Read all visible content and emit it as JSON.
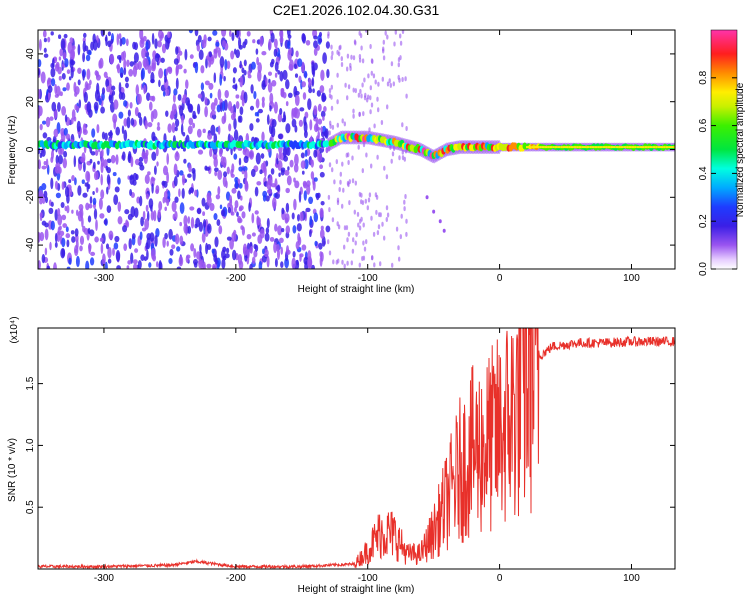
{
  "title": "C2E1.2026.102.04.30.G31",
  "chart_data": [
    {
      "type": "heatmap",
      "xlabel": "Height of straight line (km)",
      "ylabel": "Frequency (Hz)",
      "xlim": [
        -350,
        133
      ],
      "ylim": [
        -50,
        50
      ],
      "xticks": [
        -300,
        -200,
        -100,
        0,
        100
      ],
      "yticks": [
        -40,
        -20,
        0,
        20,
        40
      ],
      "colorbar": {
        "label": "Normalized spectral amplitude",
        "range": [
          0,
          1
        ],
        "ticks": [
          "0.0",
          "0.2",
          "0.4",
          "0.6",
          "0.8"
        ],
        "colormap": "rainbow (white-magenta-purple-blue-cyan-green-yellow-orange-red-magenta)"
      },
      "description_points": {
        "noise_region_x": [
          -350,
          -130
        ],
        "signal_line": {
          "x": [
            -350,
            -130,
            -120,
            -100,
            -80,
            -60,
            -50,
            -40,
            -30,
            -20,
            -10,
            0,
            20,
            60,
            133
          ],
          "freq_hz": [
            2,
            2,
            5,
            5,
            3,
            0,
            -3,
            0,
            1,
            1,
            1,
            1,
            1,
            1,
            1
          ]
        }
      },
      "grid": false
    },
    {
      "type": "line",
      "xlabel": "Height of straight line (km)",
      "ylabel": "SNR (10 * v/v)",
      "y_multiplier": "(x10⁴)",
      "xlim": [
        -350,
        133
      ],
      "ylim": [
        0,
        1.95
      ],
      "xticks": [
        -300,
        -200,
        -100,
        0,
        100
      ],
      "yticks": [
        0.5,
        1.0,
        1.5
      ],
      "ytick_labels": [
        "0.5",
        "1.0",
        "1.5"
      ],
      "series": [
        {
          "color": "#e8302a",
          "x": [
            -350,
            -300,
            -250,
            -230,
            -200,
            -150,
            -110,
            -100,
            -90,
            -80,
            -70,
            -60,
            -50,
            -40,
            -30,
            -20,
            -10,
            0,
            10,
            20,
            30,
            40,
            60,
            80,
            100,
            133
          ],
          "y": [
            0.02,
            0.02,
            0.03,
            0.06,
            0.02,
            0.02,
            0.04,
            0.15,
            0.3,
            0.28,
            0.12,
            0.12,
            0.3,
            0.55,
            0.8,
            0.95,
            1.0,
            1.1,
            1.25,
            1.55,
            1.72,
            1.8,
            1.83,
            1.83,
            1.84,
            1.84
          ]
        }
      ],
      "grid": false
    }
  ]
}
